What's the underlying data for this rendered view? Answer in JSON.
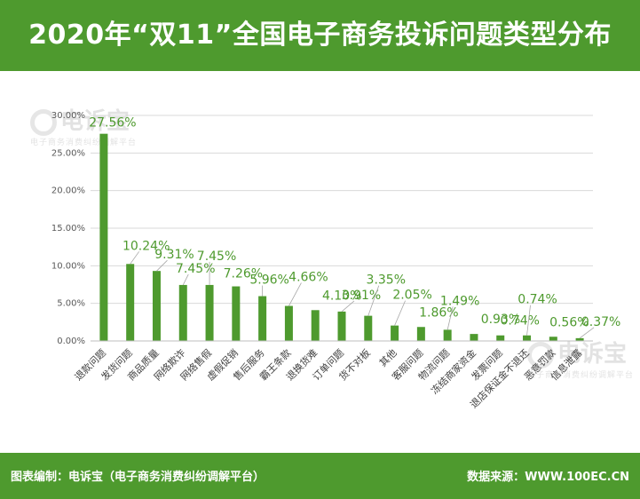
{
  "title": "2020年“双11”全国电子商务投诉问题类型分布",
  "footer": {
    "left": "图表编制：电诉宝（电子商务消费纠纷调解平台）",
    "right": "数据来源：WWW.100EC.CN"
  },
  "watermark": {
    "name": "电诉宝",
    "subtitle": "电子商务消费纠纷调解平台"
  },
  "colors": {
    "header_bg": "#4e9a2e",
    "bar": "#4e9a2e",
    "data_label": "#4e9a2e"
  },
  "chart_data": {
    "type": "bar",
    "title": "",
    "xlabel": "",
    "ylabel": "",
    "ylim": [
      0,
      30
    ],
    "yticks": [
      "0.00%",
      "5.00%",
      "10.00%",
      "15.00%",
      "20.00%",
      "25.00%",
      "30.00%"
    ],
    "grid": true,
    "categories": [
      "退款问题",
      "发货问题",
      "商品质量",
      "网络欺诈",
      "网络售假",
      "虚假促销",
      "售后服务",
      "霸王条款",
      "退换货难",
      "订单问题",
      "货不对板",
      "其他",
      "客服问题",
      "物流问题",
      "冻结商家资金",
      "发票问题",
      "退店保证金不退还",
      "恶意罚款",
      "信息泄露"
    ],
    "values": [
      27.56,
      10.24,
      9.31,
      7.45,
      7.45,
      7.26,
      5.96,
      4.66,
      4.1,
      3.91,
      3.35,
      2.05,
      1.86,
      1.49,
      0.93,
      0.74,
      0.74,
      0.56,
      0.37
    ],
    "labels": [
      "27.56%",
      "10.24%",
      "9.31%",
      "7.45%",
      "7.45%",
      "7.26%",
      "5.96%",
      "4.66%",
      "4.10%",
      "3.91%",
      "3.35%",
      "2.05%",
      "1.86%",
      "1.49%",
      "0.93%",
      "0.74%",
      "0.74%",
      "0.56%",
      "0.37%"
    ]
  }
}
